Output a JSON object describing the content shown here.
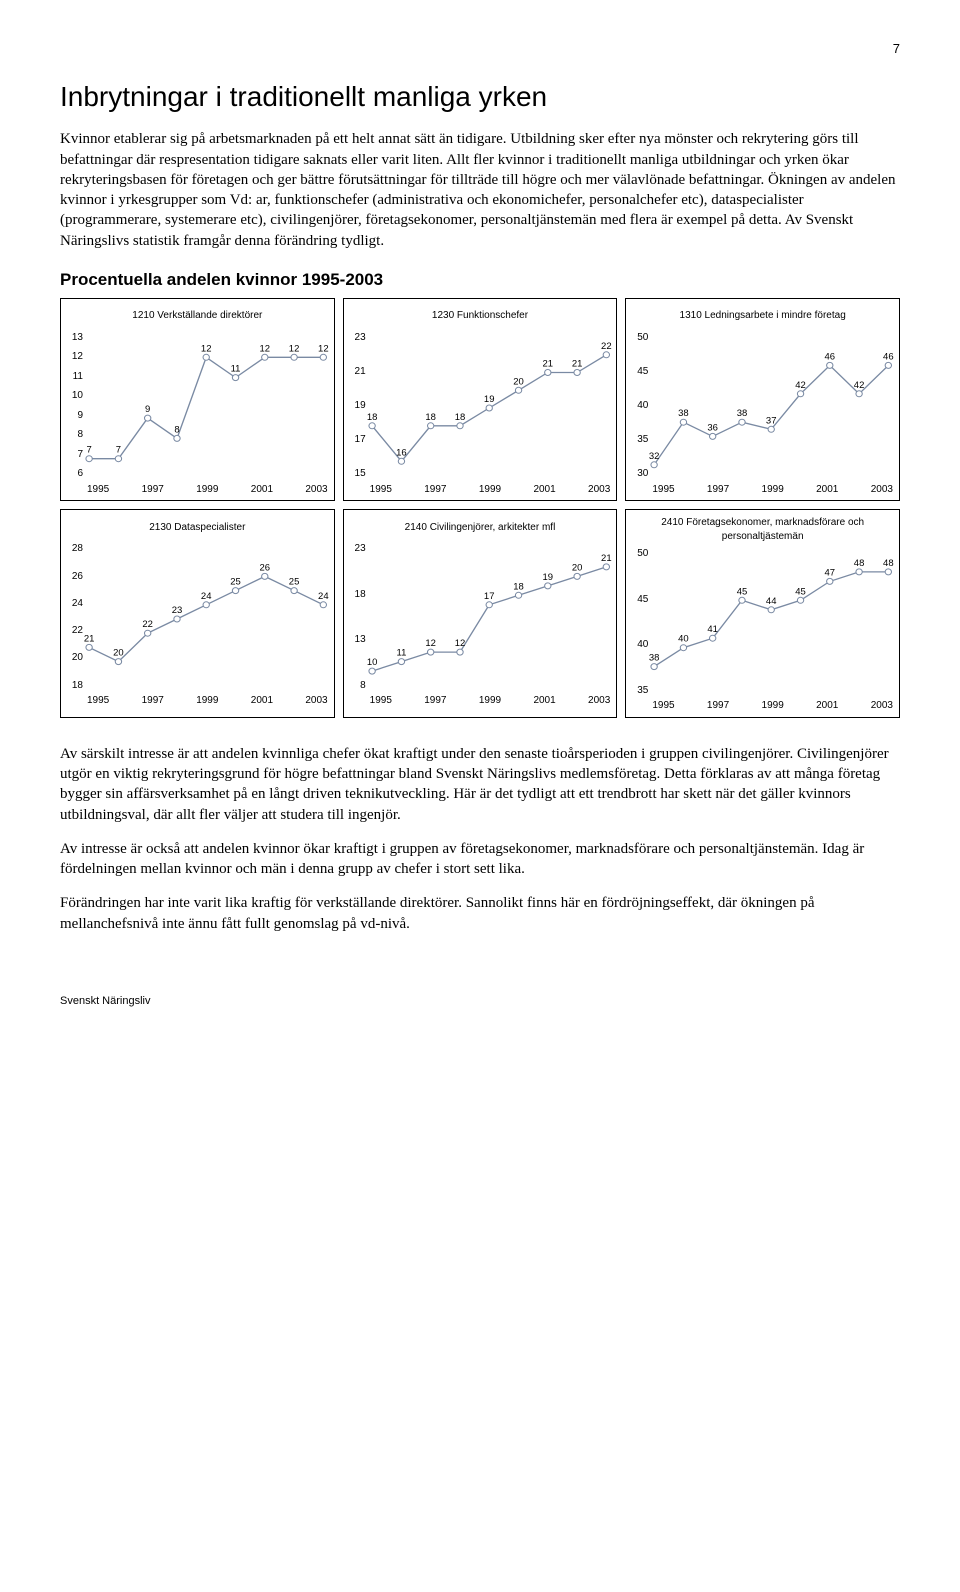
{
  "page_number": "7",
  "heading": "Inbrytningar i traditionellt manliga yrken",
  "intro_paragraph": "Kvinnor etablerar sig på arbetsmarknaden på ett helt annat sätt än tidigare. Utbildning sker efter nya mönster och rekrytering görs till befattningar där respresentation tidigare saknats eller varit liten. Allt fler kvinnor i traditionellt manliga utbildningar och yrken ökar rekryteringsbasen för företagen och ger bättre förutsättningar för tillträde till högre och mer välavlönade befattningar. Ökningen av andelen kvinnor i yrkesgrupper som Vd: ar, funktionschefer (administrativa och ekonomichefer, personalchefer etc), dataspecialister (programmerare, systemerare etc), civilingenjörer, företagsekonomer, personaltjänstemän med flera är exempel på detta. Av Svenskt Näringslivs statistik framgår denna förändring tydligt.",
  "charts_heading": "Procentuella andelen kvinnor 1995-2003",
  "charts": [
    {
      "title": "1210 Verkställande direktörer",
      "years": [
        1995,
        1996,
        1997,
        1998,
        1999,
        2000,
        2001,
        2002,
        2003
      ],
      "values": [
        7,
        7,
        9,
        8,
        12,
        11,
        12,
        12,
        12
      ],
      "ymin": 6,
      "ymax": 13,
      "ystep": 1,
      "line_color": "#7a8aa3",
      "marker_fill": "#ffffff"
    },
    {
      "title": "1230 Funktionschefer",
      "years": [
        1995,
        1996,
        1997,
        1998,
        1999,
        2000,
        2001,
        2002,
        2003
      ],
      "values": [
        18,
        16,
        18,
        18,
        19,
        20,
        21,
        21,
        22
      ],
      "ymin": 15,
      "ymax": 23,
      "ystep": 2,
      "line_color": "#7a8aa3",
      "marker_fill": "#ffffff"
    },
    {
      "title": "1310  Ledningsarbete i mindre företag",
      "years": [
        1995,
        1996,
        1997,
        1998,
        1999,
        2000,
        2001,
        2002,
        2003
      ],
      "values": [
        32,
        38,
        36,
        38,
        37,
        42,
        46,
        42,
        46
      ],
      "ymin": 30,
      "ymax": 50,
      "ystep": 5,
      "line_color": "#7a8aa3",
      "marker_fill": "#ffffff"
    },
    {
      "title": "2130 Dataspecialister",
      "years": [
        1995,
        1996,
        1997,
        1998,
        1999,
        2000,
        2001,
        2002,
        2003
      ],
      "values": [
        21,
        20,
        22,
        23,
        24,
        25,
        26,
        25,
        24
      ],
      "ymin": 18,
      "ymax": 28,
      "ystep": 2,
      "line_color": "#7a8aa3",
      "marker_fill": "#ffffff"
    },
    {
      "title": "2140 Civilingenjörer, arkitekter mfl",
      "years": [
        1995,
        1996,
        1997,
        1998,
        1999,
        2000,
        2001,
        2002,
        2003
      ],
      "values": [
        10,
        11,
        12,
        12,
        17,
        18,
        19,
        20,
        21
      ],
      "ymin": 8,
      "ymax": 23,
      "ystep": 5,
      "line_color": "#7a8aa3",
      "marker_fill": "#ffffff"
    },
    {
      "title": "2410 Företagsekonomer, marknadsförare och personaltjästemän",
      "years": [
        1995,
        1996,
        1997,
        1998,
        1999,
        2000,
        2001,
        2002,
        2003
      ],
      "values": [
        38,
        40,
        41,
        45,
        44,
        45,
        47,
        48,
        48
      ],
      "ymin": 35,
      "ymax": 50,
      "ystep": 5,
      "line_color": "#7a8aa3",
      "marker_fill": "#ffffff"
    }
  ],
  "x_labels": [
    "1995",
    "1997",
    "1999",
    "2001",
    "2003"
  ],
  "closing_paragraphs": [
    "Av särskilt intresse är att andelen kvinnliga chefer ökat kraftigt under den senaste tioårsperioden i gruppen civilingenjörer. Civilingenjörer utgör en viktig rekryteringsgrund för högre befattningar bland Svenskt Näringslivs medlemsföretag.  Detta förklaras av att många företag bygger sin affärsverksamhet på en långt driven teknikutveckling. Här är det tydligt att ett trendbrott har skett när det gäller kvinnors utbildningsval, där allt fler väljer att studera till ingenjör.",
    "Av intresse är också att andelen kvinnor ökar kraftigt i gruppen av företagsekonomer, marknadsförare och personaltjänstemän. Idag är fördelningen mellan kvinnor och män i denna grupp av chefer i stort sett lika.",
    "Förändringen har inte varit lika kraftig för verkställande direktörer. Sannolikt finns här en fördröjningseffekt, där ökningen på mellanchefsnivå inte ännu fått fullt genomslag på vd-nivå."
  ],
  "footer": "Svenskt Näringsliv"
}
